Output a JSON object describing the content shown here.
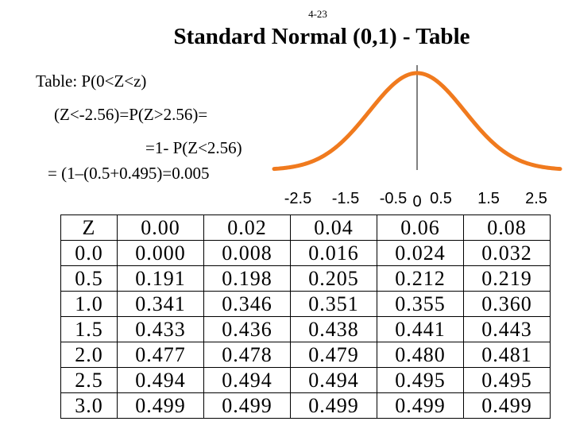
{
  "slide": {
    "page_number": "4-23",
    "title": "Standard Normal (0,1) - Table"
  },
  "text": {
    "line1": "Table: P(0<Z<z)",
    "line2": "(Z<-2.56)=P(Z>2.56)=",
    "line3": "=1- P(Z<2.56)",
    "line4": "= (1–(0.5+0.495)=0.005"
  },
  "curve": {
    "color": "#f07a1e",
    "x_tick_labels": [
      {
        "label": "-2.5",
        "value": -2.5
      },
      {
        "label": "-1.5",
        "value": -1.5
      },
      {
        "label": "-0.5",
        "value": -0.5
      },
      {
        "label": "0",
        "value": 0
      },
      {
        "label": "0.5",
        "value": 0.5
      },
      {
        "label": "1.5",
        "value": 1.5
      },
      {
        "label": "2.5",
        "value": 2.5
      }
    ],
    "x_range": [
      -3,
      3
    ]
  },
  "table": {
    "headers": [
      "Z",
      "0.00",
      "0.02",
      "0.04",
      "0.06",
      "0.08"
    ],
    "rows": [
      [
        "0.0",
        "0.000",
        "0.008",
        "0.016",
        "0.024",
        "0.032"
      ],
      [
        "0.5",
        "0.191",
        "0.198",
        "0.205",
        "0.212",
        "0.219"
      ],
      [
        "1.0",
        "0.341",
        "0.346",
        "0.351",
        "0.355",
        "0.360"
      ],
      [
        "1.5",
        "0.433",
        "0.436",
        "0.438",
        "0.441",
        "0.443"
      ],
      [
        "2.0",
        "0.477",
        "0.478",
        "0.479",
        "0.480",
        "0.481"
      ],
      [
        "2.5",
        "0.494",
        "0.494",
        "0.494",
        "0.495",
        "0.495"
      ],
      [
        "3.0",
        "0.499",
        "0.499",
        "0.499",
        "0.499",
        "0.499"
      ]
    ]
  }
}
